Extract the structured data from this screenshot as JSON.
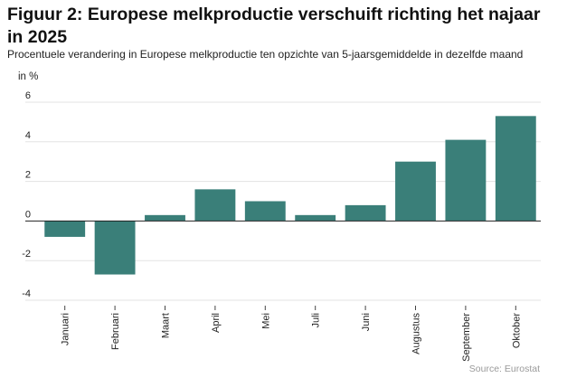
{
  "title": "Figuur 2: Europese melkproductie verschuift richting het najaar in 2025",
  "subtitle": "Procentuele verandering in Europese melkproductie ten opzichte van 5-jaarsgemiddelde in dezelfde maand",
  "unit": "in %",
  "source": "Source:  Eurostat",
  "colors": {
    "bar": "#3a7f79",
    "grid": "#e3e3e3",
    "zero_line": "#222222"
  },
  "chart_data": {
    "type": "bar",
    "title": "Figuur 2: Europese melkproductie verschuift richting het najaar in 2025",
    "xlabel": "",
    "ylabel": "in %",
    "ylim": [
      -4,
      6
    ],
    "yticks": [
      6,
      4,
      2,
      0,
      -2,
      -4
    ],
    "ytick_labels": [
      "6",
      "4",
      "2",
      "0",
      "-2",
      "-4"
    ],
    "grid": true,
    "categories": [
      "Januari",
      "Februari",
      "Maart",
      "April",
      "Mei",
      "Juli",
      "Juni",
      "Augustus",
      "September",
      "Oktober"
    ],
    "values": [
      -0.8,
      -2.7,
      0.3,
      1.6,
      1.0,
      0.3,
      0.8,
      3.0,
      4.1,
      5.3
    ]
  }
}
